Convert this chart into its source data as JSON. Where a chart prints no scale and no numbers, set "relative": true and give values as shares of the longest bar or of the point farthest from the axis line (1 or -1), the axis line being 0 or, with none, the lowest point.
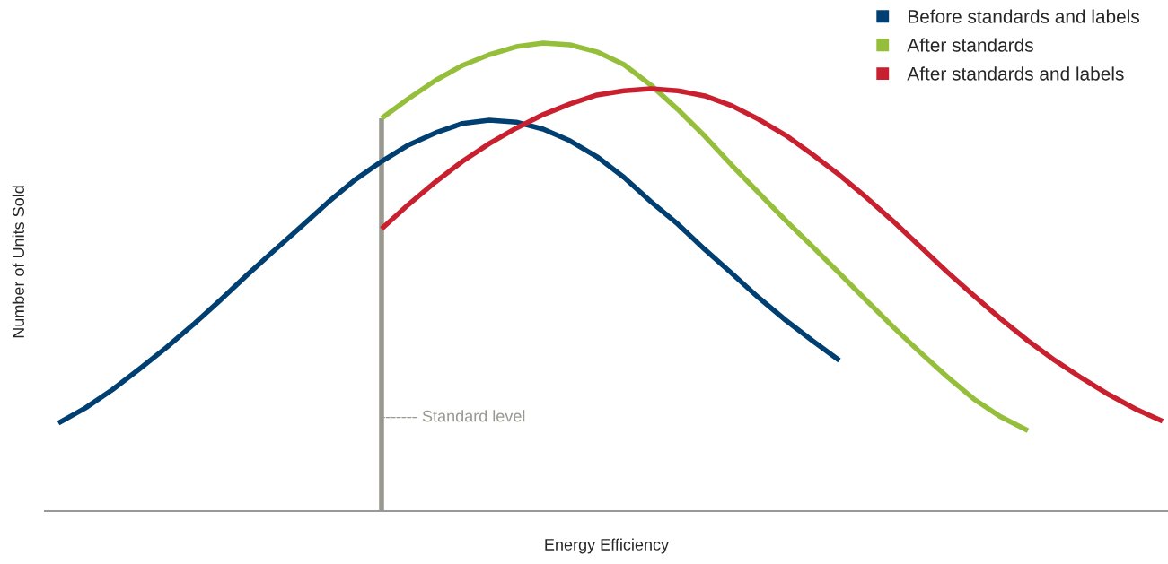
{
  "chart_data": {
    "type": "line",
    "relative": true,
    "xlabel": "Energy Efficiency",
    "ylabel": "Number of Units Sold",
    "legend": "top right",
    "marker": "none",
    "line_style": "solid",
    "tick_labels": false,
    "categories": [
      null,
      null,
      null,
      null,
      null,
      null,
      null,
      null,
      null,
      null,
      null,
      null,
      null,
      null,
      null,
      null,
      null,
      null,
      null,
      null,
      null,
      null,
      null,
      null,
      null,
      null,
      null,
      null,
      null,
      null,
      null,
      null,
      null,
      null,
      null,
      null,
      null,
      null,
      null,
      null,
      null,
      null
    ],
    "series": [
      {
        "name": "Before standards and labels",
        "color": "#003f72",
        "values": [
          0.188,
          0.22,
          0.259,
          0.303,
          0.349,
          0.398,
          0.45,
          0.504,
          0.556,
          0.607,
          0.659,
          0.707,
          0.747,
          0.782,
          0.808,
          0.828,
          0.835,
          0.831,
          0.816,
          0.791,
          0.757,
          0.713,
          0.661,
          0.613,
          0.559,
          0.508,
          0.456,
          0.408,
          0.364,
          0.322,
          null,
          null,
          null,
          null,
          null,
          null,
          null,
          null,
          null,
          null,
          null,
          null
        ]
      },
      {
        "name": "After standards",
        "color": "#95bf3a",
        "values": [
          null,
          null,
          null,
          null,
          null,
          null,
          null,
          null,
          null,
          null,
          null,
          null,
          0.839,
          0.881,
          0.92,
          0.952,
          0.975,
          0.992,
          1,
          0.996,
          0.981,
          0.954,
          0.91,
          0.858,
          0.801,
          0.739,
          0.68,
          0.621,
          0.565,
          0.508,
          0.45,
          0.393,
          0.339,
          0.287,
          0.239,
          0.201,
          0.172,
          null,
          null,
          null,
          null,
          null
        ]
      },
      {
        "name": "After standards and labels",
        "color": "#c8202f",
        "values": [
          null,
          null,
          null,
          null,
          null,
          null,
          null,
          null,
          null,
          null,
          null,
          null,
          0.603,
          0.655,
          0.703,
          0.747,
          0.785,
          0.818,
          0.847,
          0.87,
          0.889,
          0.898,
          0.902,
          0.898,
          0.887,
          0.866,
          0.837,
          0.803,
          0.762,
          0.718,
          0.67,
          0.619,
          0.565,
          0.511,
          0.46,
          0.41,
          0.364,
          0.322,
          0.284,
          0.249,
          0.218,
          0.192
        ]
      }
    ],
    "annotations": [
      "Standard level"
    ]
  }
}
